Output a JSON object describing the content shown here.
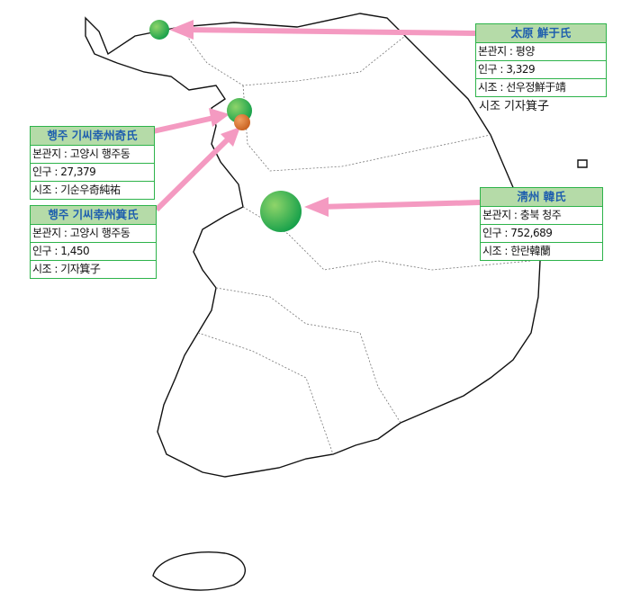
{
  "colors": {
    "accent_green": "#2db34a",
    "header_fill": "#b5dba8",
    "header_text": "#1f5fae",
    "arrow": "#f49ac1",
    "marker_green": "#23a94a",
    "marker_orange": "#d9732a"
  },
  "boxes": [
    {
      "title": "太原 鮮于氏",
      "rows": [
        "본관지 : 평양",
        "인구 : 3,329",
        "시조 : 선우정鮮于靖"
      ],
      "note": "시조 기자箕子"
    },
    {
      "title": "행주 기씨幸州奇氏",
      "rows": [
        "본관지 : 고양시 행주동",
        "인구 : 27,379",
        "시조 : 기순우奇純祐"
      ]
    },
    {
      "title": "행주 기씨幸州箕氏",
      "rows": [
        "본관지 : 고양시 행주동",
        "인구 : 1,450",
        "시조 : 기자箕子"
      ]
    },
    {
      "title": "淸州 韓氏",
      "rows": [
        "본관지 : 충북 청주",
        "인구 : 752,689",
        "시조 : 한란韓蘭"
      ]
    }
  ]
}
